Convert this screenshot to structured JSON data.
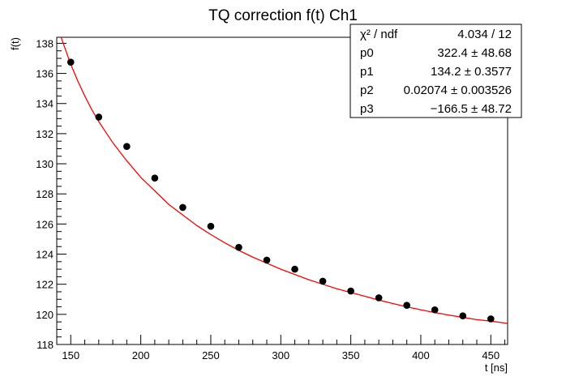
{
  "chart_data": {
    "type": "scatter",
    "title": "TQ correction f(t) Ch1",
    "xlabel": "t [ns]",
    "ylabel": "f(t)",
    "xlim": [
      140,
      462
    ],
    "ylim": [
      118,
      138.4
    ],
    "x_ticks": [
      150,
      200,
      250,
      300,
      350,
      400,
      450
    ],
    "y_ticks": [
      118,
      120,
      122,
      124,
      126,
      128,
      130,
      132,
      134,
      136,
      138
    ],
    "points": {
      "x": [
        150,
        170,
        190,
        210,
        230,
        250,
        270,
        290,
        310,
        330,
        350,
        370,
        390,
        410,
        430,
        450
      ],
      "y": [
        136.75,
        133.1,
        131.15,
        129.05,
        127.1,
        125.85,
        124.45,
        123.6,
        123.0,
        122.2,
        121.55,
        121.1,
        120.6,
        120.3,
        119.9,
        119.7
      ]
    },
    "fit": {
      "color": "#ff0000",
      "x": [
        140,
        145,
        150,
        155,
        160,
        165,
        170,
        180,
        190,
        200,
        210,
        220,
        230,
        240,
        250,
        260,
        270,
        280,
        290,
        300,
        310,
        320,
        330,
        340,
        350,
        360,
        370,
        380,
        390,
        400,
        410,
        420,
        430,
        440,
        450,
        462
      ],
      "y": [
        139.2,
        137.9,
        136.6,
        135.5,
        134.5,
        133.6,
        132.8,
        131.4,
        130.2,
        129.1,
        128.2,
        127.3,
        126.6,
        125.9,
        125.3,
        124.75,
        124.25,
        123.8,
        123.4,
        123.0,
        122.65,
        122.3,
        122.0,
        121.7,
        121.45,
        121.2,
        120.95,
        120.72,
        120.5,
        120.3,
        120.12,
        119.95,
        119.8,
        119.65,
        119.55,
        119.4
      ]
    },
    "stats": [
      {
        "label": "χ² / ndf",
        "value": "4.034 / 12"
      },
      {
        "label": "p0",
        "value": "322.4 ± 48.68"
      },
      {
        "label": "p1",
        "value": "134.2 ± 0.3577"
      },
      {
        "label": "p2",
        "value": "0.02074 ± 0.003526"
      },
      {
        "label": "p3",
        "value": "−166.5 ± 48.72"
      }
    ],
    "grid": false
  }
}
